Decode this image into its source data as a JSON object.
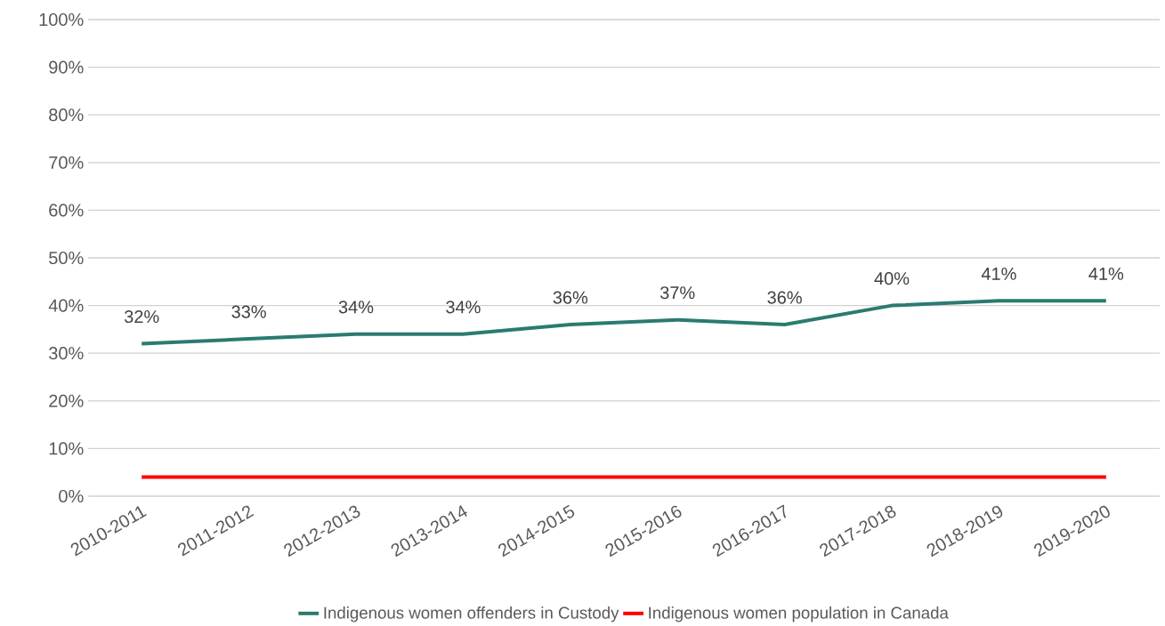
{
  "chart_data": {
    "type": "line",
    "categories": [
      "2010-2011",
      "2011-2012",
      "2012-2013",
      "2013-2014",
      "2014-2015",
      "2015-2016",
      "2016-2017",
      "2017-2018",
      "2018-2019",
      "2019-2020"
    ],
    "series": [
      {
        "name": "Indigenous women offenders in Custody",
        "color": "#2a7b70",
        "values": [
          32,
          33,
          34,
          34,
          36,
          37,
          36,
          40,
          41,
          41
        ],
        "value_labels": [
          "32%",
          "33%",
          "34%",
          "34%",
          "36%",
          "37%",
          "36%",
          "40%",
          "41%",
          "41%"
        ]
      },
      {
        "name": "Indigenous women population in Canada",
        "color": "#ff0000",
        "values": [
          4,
          4,
          4,
          4,
          4,
          4,
          4,
          4,
          4,
          4
        ]
      }
    ],
    "ylim": [
      0,
      100
    ],
    "yticks": [
      {
        "value": 0,
        "label": "0%"
      },
      {
        "value": 10,
        "label": "10%"
      },
      {
        "value": 20,
        "label": "20%"
      },
      {
        "value": 30,
        "label": "30%"
      },
      {
        "value": 40,
        "label": "40%"
      },
      {
        "value": 50,
        "label": "50%"
      },
      {
        "value": 60,
        "label": "60%"
      },
      {
        "value": 70,
        "label": "70%"
      },
      {
        "value": 80,
        "label": "80%"
      },
      {
        "value": 90,
        "label": "90%"
      },
      {
        "value": 100,
        "label": "100%"
      }
    ],
    "grid": "y",
    "legend": "bottom"
  }
}
